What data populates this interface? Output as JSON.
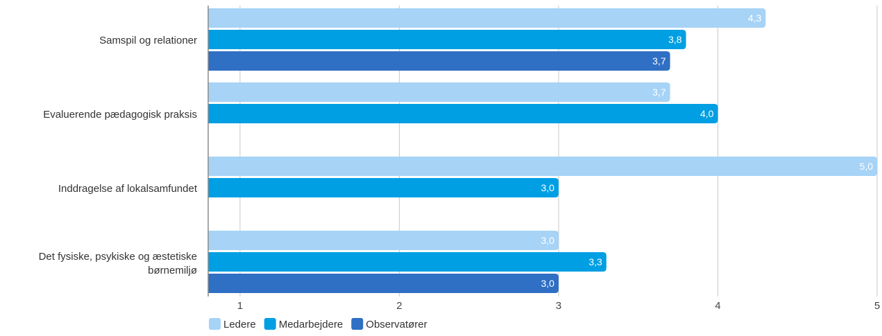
{
  "chart_data": {
    "type": "bar",
    "orientation": "horizontal",
    "categories": [
      "Samspil og relationer",
      "Evaluerende pædagogisk praksis",
      "Inddragelse af lokalsamfundet",
      "Det fysiske, psykiske og æstetiske børnemiljø"
    ],
    "category_lines": [
      [
        "Samspil og relationer"
      ],
      [
        "Evaluerende pædagogisk praksis"
      ],
      [
        "Inddragelse af lokalsamfundet"
      ],
      [
        "Det fysiske, psykiske og æstetiske",
        "børnemiljø"
      ]
    ],
    "series": [
      {
        "name": "Ledere",
        "color": "#a6d3f6",
        "values": [
          4.3,
          3.7,
          5.0,
          3.0
        ],
        "labels": [
          "4,3",
          "3,7",
          "5,0",
          "3,0"
        ]
      },
      {
        "name": "Medarbejdere",
        "color": "#009fe3",
        "values": [
          3.8,
          4.0,
          3.0,
          3.3
        ],
        "labels": [
          "3,8",
          "4,0",
          "3,0",
          "3,3"
        ]
      },
      {
        "name": "Observatører",
        "color": "#2f6fc4",
        "values": [
          3.7,
          null,
          null,
          3.0
        ],
        "labels": [
          "3,7",
          "",
          "",
          "3,0"
        ]
      }
    ],
    "xlim": [
      0.8,
      5
    ],
    "ticks": [
      1,
      2,
      3,
      4,
      5
    ],
    "tick_labels": [
      "1",
      "2",
      "3",
      "4",
      "5"
    ],
    "grid": true,
    "legend_position": "bottom-left"
  }
}
